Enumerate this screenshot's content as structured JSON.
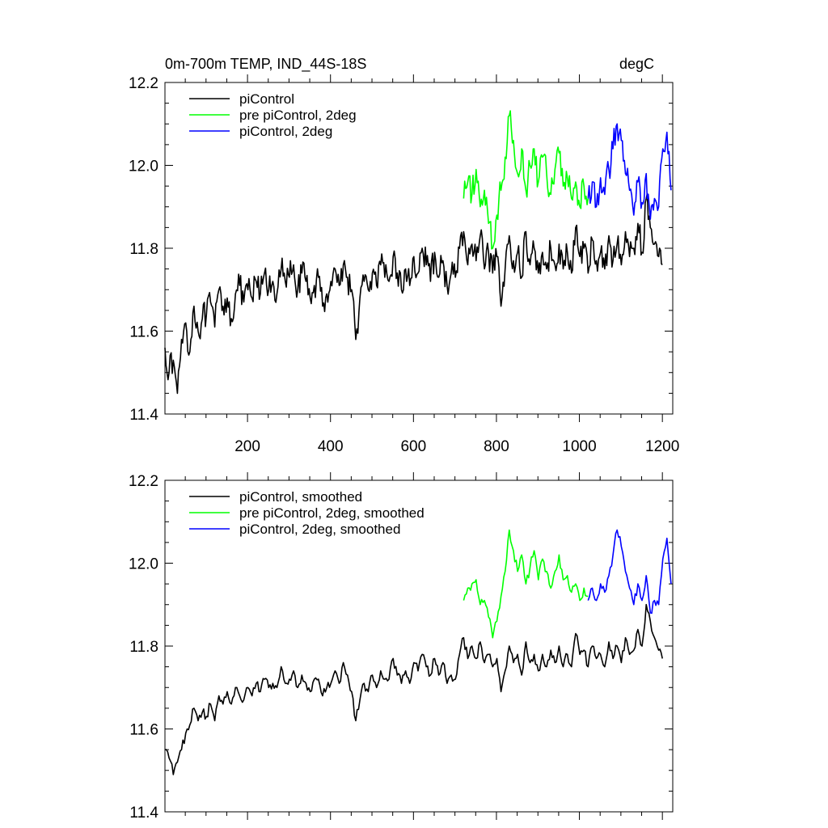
{
  "chart_data": [
    {
      "type": "line",
      "panel": "top",
      "title_left": "0m-700m TEMP, IND_44S-18S",
      "title_right": "degC",
      "xlabel": "",
      "ylabel": "",
      "xlim": [
        1,
        1225
      ],
      "ylim": [
        11.4,
        12.2
      ],
      "x_ticks": [
        200,
        400,
        600,
        800,
        1000,
        1200
      ],
      "x_tick_labels": [
        "200",
        "400",
        "600",
        "800",
        "1000",
        "1200"
      ],
      "y_ticks": [
        11.4,
        11.6,
        11.8,
        12.0,
        12.2
      ],
      "y_tick_labels": [
        "11.4",
        "11.6",
        "11.8",
        "12.0",
        "12.2"
      ],
      "legend_position": "top-left",
      "series": [
        {
          "name": "piControl",
          "color": "#000000",
          "x_step": 10,
          "x": [
            1,
            11,
            21,
            31,
            41,
            51,
            61,
            71,
            81,
            91,
            101,
            111,
            121,
            131,
            141,
            151,
            161,
            171,
            181,
            191,
            201,
            211,
            221,
            231,
            241,
            251,
            261,
            271,
            281,
            291,
            301,
            311,
            321,
            331,
            341,
            351,
            361,
            371,
            381,
            391,
            401,
            411,
            421,
            431,
            441,
            451,
            461,
            471,
            481,
            491,
            501,
            511,
            521,
            531,
            541,
            551,
            561,
            571,
            581,
            591,
            601,
            611,
            621,
            631,
            641,
            651,
            661,
            671,
            681,
            691,
            701,
            711,
            721,
            731,
            741,
            751,
            761,
            771,
            781,
            791,
            801,
            811,
            821,
            831,
            841,
            851,
            861,
            871,
            881,
            891,
            901,
            911,
            921,
            931,
            941,
            951,
            961,
            971,
            981,
            991,
            1001,
            1011,
            1021,
            1031,
            1041,
            1051,
            1061,
            1071,
            1081,
            1091,
            1101,
            1111,
            1121,
            1131,
            1141,
            1151,
            1161,
            1171,
            1181,
            1191,
            1200
          ],
          "values": [
            11.56,
            11.5,
            11.53,
            11.45,
            11.58,
            11.62,
            11.55,
            11.66,
            11.6,
            11.63,
            11.64,
            11.67,
            11.61,
            11.7,
            11.66,
            11.68,
            11.63,
            11.69,
            11.71,
            11.67,
            11.7,
            11.68,
            11.72,
            11.69,
            11.74,
            11.7,
            11.72,
            11.69,
            11.75,
            11.72,
            11.73,
            11.76,
            11.7,
            11.74,
            11.72,
            11.68,
            11.71,
            11.73,
            11.66,
            11.69,
            11.72,
            11.75,
            11.71,
            11.76,
            11.73,
            11.7,
            11.58,
            11.68,
            11.72,
            11.7,
            11.74,
            11.71,
            11.76,
            11.73,
            11.72,
            11.78,
            11.74,
            11.7,
            11.75,
            11.71,
            11.78,
            11.74,
            11.8,
            11.76,
            11.72,
            11.79,
            11.73,
            11.77,
            11.71,
            11.74,
            11.73,
            11.8,
            11.84,
            11.76,
            11.81,
            11.77,
            11.83,
            11.75,
            11.79,
            11.74,
            11.78,
            11.66,
            11.75,
            11.83,
            11.77,
            11.79,
            11.73,
            11.84,
            11.76,
            11.8,
            11.74,
            11.79,
            11.75,
            11.8,
            11.76,
            11.81,
            11.75,
            11.79,
            11.74,
            11.85,
            11.78,
            11.8,
            11.74,
            11.82,
            11.77,
            11.79,
            11.75,
            11.83,
            11.77,
            11.81,
            11.76,
            11.84,
            11.78,
            11.8,
            11.86,
            11.79,
            11.92,
            11.85,
            11.81,
            11.78,
            11.76
          ]
        },
        {
          "name": "pre piControl, 2deg",
          "color": "#00ff00",
          "x_step": 10,
          "x": [
            721,
            731,
            741,
            751,
            761,
            771,
            781,
            791,
            801,
            811,
            821,
            831,
            841,
            851,
            861,
            871,
            881,
            891,
            901,
            911,
            921,
            931,
            941,
            951,
            961,
            971,
            981,
            991,
            1001,
            1011,
            1021
          ],
          "values": [
            11.92,
            11.96,
            11.93,
            11.99,
            11.9,
            11.94,
            11.86,
            11.8,
            11.88,
            11.94,
            12.02,
            12.12,
            12.06,
            11.98,
            12.04,
            11.94,
            12.0,
            12.04,
            11.96,
            12.02,
            11.98,
            11.93,
            11.99,
            12.03,
            11.95,
            11.97,
            11.92,
            11.96,
            11.9,
            11.95,
            11.92
          ]
        },
        {
          "name": "piControl, 2deg",
          "color": "#0000ff",
          "x_step": 10,
          "x": [
            1021,
            1031,
            1041,
            1051,
            1061,
            1071,
            1081,
            1091,
            1101,
            1111,
            1121,
            1131,
            1141,
            1151,
            1161,
            1171,
            1181,
            1191,
            1201,
            1211,
            1221
          ],
          "values": [
            11.92,
            11.96,
            11.9,
            11.97,
            11.93,
            11.99,
            12.04,
            12.1,
            12.06,
            11.98,
            11.94,
            11.88,
            11.96,
            11.91,
            11.98,
            11.87,
            11.92,
            11.9,
            12.04,
            12.08,
            11.94
          ]
        }
      ]
    },
    {
      "type": "line",
      "panel": "bottom",
      "xlabel": "",
      "ylabel": "",
      "xlim": [
        1,
        1225
      ],
      "ylim": [
        11.4,
        12.2
      ],
      "x_ticks": [
        200,
        400,
        600,
        800,
        1000,
        1200
      ],
      "y_ticks": [
        11.4,
        11.6,
        11.8,
        12.0,
        12.2
      ],
      "y_tick_labels": [
        "11.4",
        "11.6",
        "11.8",
        "12.0",
        "12.2"
      ],
      "legend_position": "top-left",
      "series": [
        {
          "name": "piControl, smoothed",
          "color": "#000000",
          "x_step": 10,
          "x": [
            1,
            11,
            21,
            31,
            41,
            51,
            61,
            71,
            81,
            91,
            101,
            111,
            121,
            131,
            141,
            151,
            161,
            171,
            181,
            191,
            201,
            211,
            221,
            231,
            241,
            251,
            261,
            271,
            281,
            291,
            301,
            311,
            321,
            331,
            341,
            351,
            361,
            371,
            381,
            391,
            401,
            411,
            421,
            431,
            441,
            451,
            461,
            471,
            481,
            491,
            501,
            511,
            521,
            531,
            541,
            551,
            561,
            571,
            581,
            591,
            601,
            611,
            621,
            631,
            641,
            651,
            661,
            671,
            681,
            691,
            701,
            711,
            721,
            731,
            741,
            751,
            761,
            771,
            781,
            791,
            801,
            811,
            821,
            831,
            841,
            851,
            861,
            871,
            881,
            891,
            901,
            911,
            921,
            931,
            941,
            951,
            961,
            971,
            981,
            991,
            1001,
            1011,
            1021,
            1031,
            1041,
            1051,
            1061,
            1071,
            1081,
            1091,
            1101,
            1111,
            1121,
            1131,
            1141,
            1151,
            1161,
            1171,
            1181,
            1191,
            1200
          ],
          "values": [
            11.55,
            11.53,
            11.49,
            11.52,
            11.55,
            11.59,
            11.61,
            11.65,
            11.62,
            11.64,
            11.63,
            11.66,
            11.62,
            11.68,
            11.66,
            11.69,
            11.66,
            11.7,
            11.68,
            11.67,
            11.7,
            11.68,
            11.71,
            11.69,
            11.72,
            11.7,
            11.71,
            11.7,
            11.75,
            11.71,
            11.72,
            11.74,
            11.7,
            11.73,
            11.71,
            11.69,
            11.72,
            11.72,
            11.68,
            11.7,
            11.71,
            11.74,
            11.71,
            11.76,
            11.73,
            11.69,
            11.62,
            11.67,
            11.71,
            11.69,
            11.73,
            11.7,
            11.74,
            11.72,
            11.72,
            11.77,
            11.73,
            11.71,
            11.74,
            11.71,
            11.76,
            11.74,
            11.78,
            11.75,
            11.73,
            11.77,
            11.73,
            11.76,
            11.71,
            11.73,
            11.72,
            11.78,
            11.82,
            11.77,
            11.8,
            11.77,
            11.81,
            11.76,
            11.78,
            11.75,
            11.77,
            11.69,
            11.74,
            11.8,
            11.76,
            11.78,
            11.73,
            11.81,
            11.76,
            11.78,
            11.74,
            11.78,
            11.75,
            11.79,
            11.76,
            11.8,
            11.75,
            11.78,
            11.75,
            11.83,
            11.78,
            11.79,
            11.75,
            11.8,
            11.77,
            11.78,
            11.75,
            11.81,
            11.77,
            11.8,
            11.76,
            11.82,
            11.78,
            11.79,
            11.84,
            11.8,
            11.9,
            11.86,
            11.82,
            11.79,
            11.77
          ]
        },
        {
          "name": "pre piControl, 2deg, smoothed",
          "color": "#00ff00",
          "x_step": 10,
          "x": [
            721,
            731,
            741,
            751,
            761,
            771,
            781,
            791,
            801,
            811,
            821,
            831,
            841,
            851,
            861,
            871,
            881,
            891,
            901,
            911,
            921,
            931,
            941,
            951,
            961,
            971,
            981,
            991,
            1001,
            1011,
            1021
          ],
          "values": [
            11.91,
            11.94,
            11.95,
            11.96,
            11.9,
            11.91,
            11.87,
            11.82,
            11.86,
            11.92,
            11.98,
            12.08,
            12.03,
            11.98,
            12.02,
            11.95,
            11.99,
            12.03,
            11.96,
            12.01,
            11.98,
            11.94,
            11.98,
            12.02,
            11.96,
            11.97,
            11.93,
            11.95,
            11.91,
            11.94,
            11.92
          ]
        },
        {
          "name": "piControl, 2deg, smoothed",
          "color": "#0000ff",
          "x_step": 10,
          "x": [
            1021,
            1031,
            1041,
            1051,
            1061,
            1071,
            1081,
            1091,
            1101,
            1111,
            1121,
            1131,
            1141,
            1151,
            1161,
            1171,
            1181,
            1191,
            1201,
            1211,
            1221
          ],
          "values": [
            11.91,
            11.94,
            11.91,
            11.95,
            11.93,
            11.97,
            12.02,
            12.08,
            12.04,
            11.98,
            11.94,
            11.9,
            11.95,
            11.91,
            11.97,
            11.88,
            11.91,
            11.9,
            12.01,
            12.06,
            11.95
          ]
        }
      ]
    }
  ]
}
